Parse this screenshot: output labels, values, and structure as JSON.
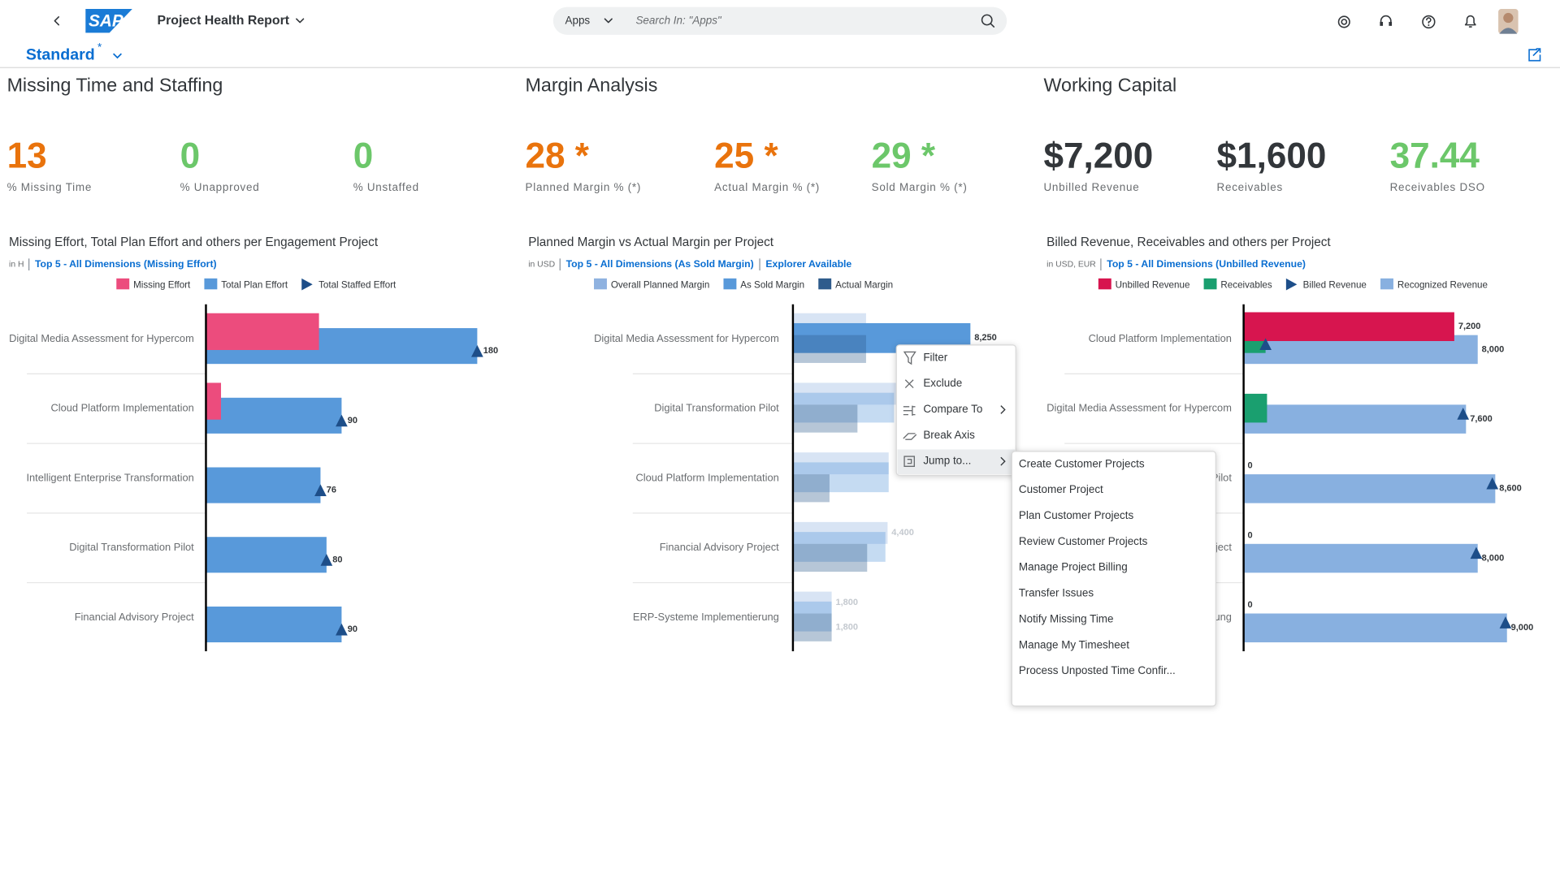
{
  "header": {
    "logo": "SAP",
    "title": "Project Health Report",
    "search_scope": "Apps",
    "search_placeholder": "Search In: \"Apps\"",
    "variant": "Standard",
    "variant_modified": "*"
  },
  "sections": [
    {
      "title": "Missing Time and Staffing",
      "kpis": [
        {
          "value": "13",
          "label": "% Missing Time",
          "color": "#e9730c"
        },
        {
          "value": "0",
          "label": "% Unapproved",
          "color": "#6cc76a"
        },
        {
          "value": "0",
          "label": "% Unstaffed",
          "color": "#6cc76a"
        }
      ]
    },
    {
      "title": "Margin Analysis",
      "kpis": [
        {
          "value": "28 *",
          "label": "Planned Margin % (*)",
          "color": "#e9730c"
        },
        {
          "value": "25 *",
          "label": "Actual Margin % (*)",
          "color": "#e9730c"
        },
        {
          "value": "29 *",
          "label": "Sold Margin % (*)",
          "color": "#6cc76a"
        }
      ]
    },
    {
      "title": "Working Capital",
      "kpis": [
        {
          "value": "$7,200",
          "label": "Unbilled Revenue",
          "color": "#32363a"
        },
        {
          "value": "$1,600",
          "label": "Receivables",
          "color": "#32363a"
        },
        {
          "value": "37.44",
          "label": "Receivables DSO",
          "color": "#6cc76a"
        }
      ]
    }
  ],
  "chart_data": [
    {
      "type": "bar",
      "orientation": "horizontal",
      "title": "Missing Effort, Total Plan Effort and others per Engagement Project",
      "unit": "in H",
      "links": [
        "Top 5 - All Dimensions (Missing Effort)"
      ],
      "categories": [
        "Digital Media Assessment for Hypercom",
        "Cloud Platform Implementation",
        "Intelligent Enterprise Transformation",
        "Digital Transformation Pilot",
        "Financial Advisory Project"
      ],
      "xlim": [
        0,
        200
      ],
      "series": [
        {
          "name": "Missing Effort",
          "color": "#ec4c7d",
          "marker": "bar",
          "values": [
            75,
            10,
            null,
            null,
            null
          ]
        },
        {
          "name": "Total Plan Effort",
          "color": "#5899da",
          "marker": "bar",
          "values": [
            180,
            90,
            76,
            80,
            90
          ]
        },
        {
          "name": "Total Staffed Effort",
          "color": "#1d4e89",
          "marker": "triangle",
          "data_labels": true,
          "values": [
            180,
            90,
            76,
            80,
            90
          ]
        }
      ]
    },
    {
      "type": "bar",
      "orientation": "horizontal",
      "title": "Planned Margin vs Actual Margin per Project",
      "unit": "in USD",
      "links": [
        "Top 5 - All Dimensions (As Sold Margin)",
        "Explorer Available"
      ],
      "categories": [
        "Digital Media Assessment for Hypercom",
        "Digital Transformation Pilot",
        "Cloud Platform Implementation",
        "Financial Advisory Project",
        "ERP-Systeme Implementierung"
      ],
      "xlim": [
        0,
        9250
      ],
      "series": [
        {
          "name": "Overall Planned Margin",
          "color": "#8fb2e0",
          "marker": "bar",
          "data_labels": true,
          "values": [
            3400,
            4900,
            4450,
            4400,
            1800
          ],
          "value_labels": [
            null,
            null,
            null,
            "4,400",
            "1,800"
          ]
        },
        {
          "name": "As Sold Margin",
          "color": "#5899da",
          "marker": "bar",
          "data_labels": true,
          "values": [
            8250,
            4700,
            4450,
            4300,
            1800
          ],
          "value_labels": [
            "8,250",
            null,
            null,
            null,
            null
          ]
        },
        {
          "name": "Actual Margin",
          "color": "#2f5c8c",
          "marker": "bar",
          "data_labels": true,
          "values": [
            3400,
            3000,
            1700,
            3450,
            1800
          ],
          "value_labels": [
            null,
            null,
            null,
            null,
            "1,800"
          ]
        }
      ]
    },
    {
      "type": "bar",
      "orientation": "horizontal",
      "title": "Billed Revenue, Receivables and others per Project",
      "unit": "in USD, EUR",
      "links": [
        "Top 5 - All Dimensions (Unbilled Revenue)"
      ],
      "categories": [
        "Cloud Platform Implementation",
        "Digital Media Assessment for Hypercom",
        "Digital Transformation Pilot",
        "Financial Advisory Project",
        "ERP-Systeme Implementierung"
      ],
      "xlim": [
        0,
        10200
      ],
      "series": [
        {
          "name": "Unbilled Revenue",
          "color": "#d7154f",
          "marker": "bar",
          "data_labels": true,
          "values": [
            7200,
            null,
            0,
            0,
            0
          ],
          "value_labels": [
            "7,200",
            null,
            "0",
            "0",
            "0"
          ]
        },
        {
          "name": "Receivables",
          "color": "#1a9f6f",
          "marker": "bar",
          "values": [
            750,
            800,
            null,
            null,
            null
          ]
        },
        {
          "name": "Billed Revenue",
          "color": "#1d4e89",
          "marker": "triangle",
          "values": [
            750,
            7500,
            8500,
            7950,
            8950
          ]
        },
        {
          "name": "Recognized Revenue",
          "color": "#88b0e0",
          "marker": "bar",
          "data_labels": true,
          "values": [
            8000,
            7600,
            8600,
            8000,
            9000
          ],
          "value_labels": [
            "8,000",
            "7,600",
            "8,600",
            "8,000",
            "9,000"
          ]
        }
      ]
    }
  ],
  "context_menu": {
    "items": [
      "Filter",
      "Exclude",
      "Compare To",
      "Break Axis",
      "Jump to..."
    ]
  },
  "jump_to_menu": {
    "items": [
      "Create Customer Projects",
      "Customer Project",
      "Plan Customer Projects",
      "Review Customer Projects",
      "Manage Project Billing",
      "Transfer Issues",
      "Notify Missing Time",
      "Manage My Timesheet",
      "Process Unposted Time Confir..."
    ]
  }
}
